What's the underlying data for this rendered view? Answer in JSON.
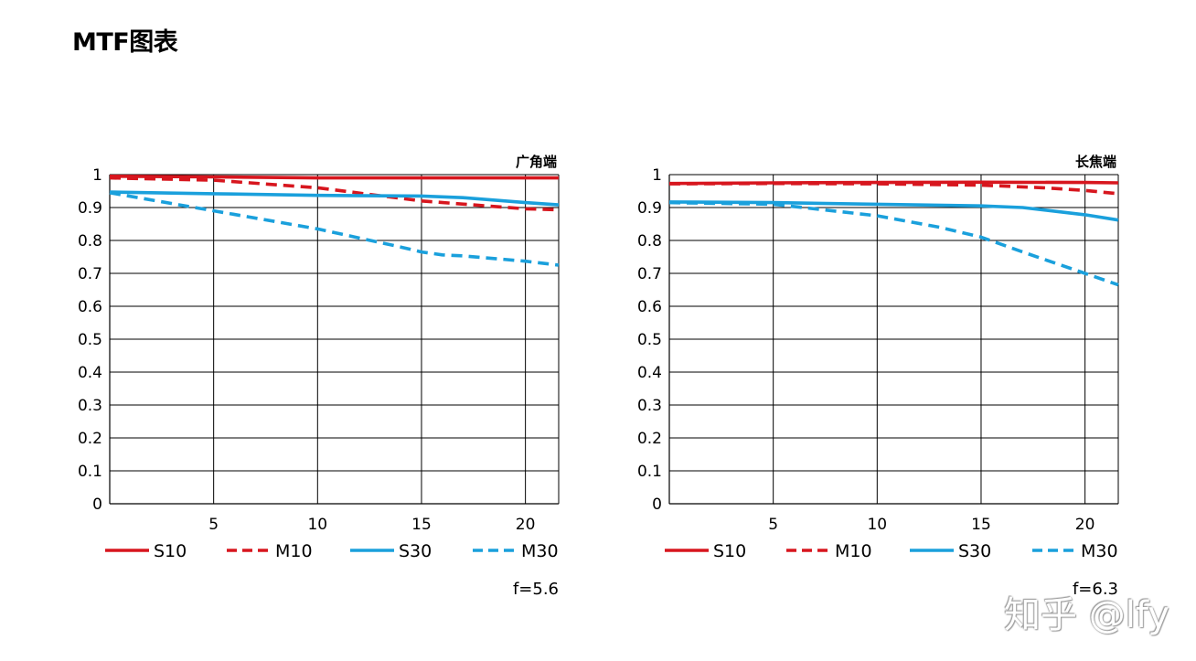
{
  "page": {
    "title": "MTF图表"
  },
  "watermark": "知乎 @lfy",
  "colors": {
    "red": "#d7161e",
    "blue": "#1aa0dc",
    "grid": "#000000"
  },
  "chart_data": [
    {
      "type": "line",
      "title": "广角端",
      "footnote": "f=5.6",
      "xlim": [
        0,
        21.6
      ],
      "ylim": [
        0,
        1
      ],
      "xticks": [
        "5",
        "10",
        "15",
        "20"
      ],
      "yticks": [
        "0",
        "0.1",
        "0.2",
        "0.3",
        "0.4",
        "0.5",
        "0.6",
        "0.7",
        "0.8",
        "0.9",
        "1"
      ],
      "grid": true,
      "legend_position": "bottom",
      "series": [
        {
          "name": "S10",
          "color": "red",
          "dash": false,
          "x": [
            0,
            5,
            10,
            15,
            20,
            21.6
          ],
          "y": [
            0.995,
            0.993,
            0.99,
            0.99,
            0.99,
            0.99
          ]
        },
        {
          "name": "M10",
          "color": "red",
          "dash": true,
          "x": [
            0,
            5,
            10,
            15,
            20,
            21.6
          ],
          "y": [
            0.99,
            0.983,
            0.96,
            0.92,
            0.896,
            0.893
          ]
        },
        {
          "name": "S30",
          "color": "blue",
          "dash": false,
          "x": [
            0,
            5,
            10,
            15,
            17,
            20,
            21.6
          ],
          "y": [
            0.947,
            0.942,
            0.937,
            0.935,
            0.93,
            0.915,
            0.908
          ]
        },
        {
          "name": "M30",
          "color": "blue",
          "dash": true,
          "x": [
            0,
            5,
            10,
            14,
            15,
            16,
            17,
            20,
            21.6
          ],
          "y": [
            0.945,
            0.89,
            0.835,
            0.78,
            0.765,
            0.756,
            0.753,
            0.737,
            0.725
          ]
        }
      ]
    },
    {
      "type": "line",
      "title": "长焦端",
      "footnote": "f=6.3",
      "xlim": [
        0,
        21.6
      ],
      "ylim": [
        0,
        1
      ],
      "xticks": [
        "5",
        "10",
        "15",
        "20"
      ],
      "yticks": [
        "0",
        "0.1",
        "0.2",
        "0.3",
        "0.4",
        "0.5",
        "0.6",
        "0.7",
        "0.8",
        "0.9",
        "1"
      ],
      "grid": true,
      "legend_position": "bottom",
      "series": [
        {
          "name": "S10",
          "color": "red",
          "dash": false,
          "x": [
            0,
            5,
            10,
            15,
            20,
            21.6
          ],
          "y": [
            0.973,
            0.975,
            0.976,
            0.977,
            0.976,
            0.975
          ]
        },
        {
          "name": "M10",
          "color": "red",
          "dash": true,
          "x": [
            0,
            5,
            10,
            15,
            18,
            20,
            21.6
          ],
          "y": [
            0.972,
            0.973,
            0.972,
            0.968,
            0.96,
            0.952,
            0.942
          ]
        },
        {
          "name": "S30",
          "color": "blue",
          "dash": false,
          "x": [
            0,
            5,
            10,
            15,
            17,
            20,
            21.6
          ],
          "y": [
            0.917,
            0.915,
            0.91,
            0.905,
            0.9,
            0.878,
            0.862
          ]
        },
        {
          "name": "M30",
          "color": "blue",
          "dash": true,
          "x": [
            0,
            5,
            10,
            13,
            15,
            17,
            20,
            21.6
          ],
          "y": [
            0.915,
            0.91,
            0.875,
            0.84,
            0.81,
            0.765,
            0.7,
            0.665
          ]
        }
      ]
    }
  ]
}
